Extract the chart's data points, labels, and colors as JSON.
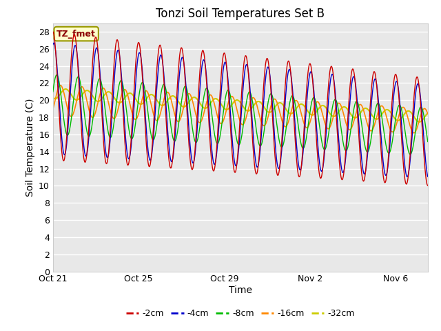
{
  "title": "Tonzi Soil Temperatures Set B",
  "xlabel": "Time",
  "ylabel": "Soil Temperature (C)",
  "ylim": [
    0,
    29
  ],
  "yticks": [
    0,
    2,
    4,
    6,
    8,
    10,
    12,
    14,
    16,
    18,
    20,
    22,
    24,
    26,
    28
  ],
  "num_days": 17.5,
  "colors": {
    "-2cm": "#cc0000",
    "-4cm": "#0000cc",
    "-8cm": "#00bb00",
    "-16cm": "#ff8800",
    "-32cm": "#cccc00"
  },
  "annotation_text": "TZ_fmet",
  "annotation_color": "#8b0000",
  "annotation_bg": "#ffffcc",
  "annotation_edge": "#999900",
  "plot_bg": "#e8e8e8",
  "fig_bg": "#ffffff",
  "grid_color": "#ffffff",
  "tick_dates": [
    "Oct 21",
    "Oct 25",
    "Oct 29",
    "Nov 2",
    "Nov 6"
  ],
  "tick_positions": [
    0,
    4,
    8,
    12,
    16
  ]
}
